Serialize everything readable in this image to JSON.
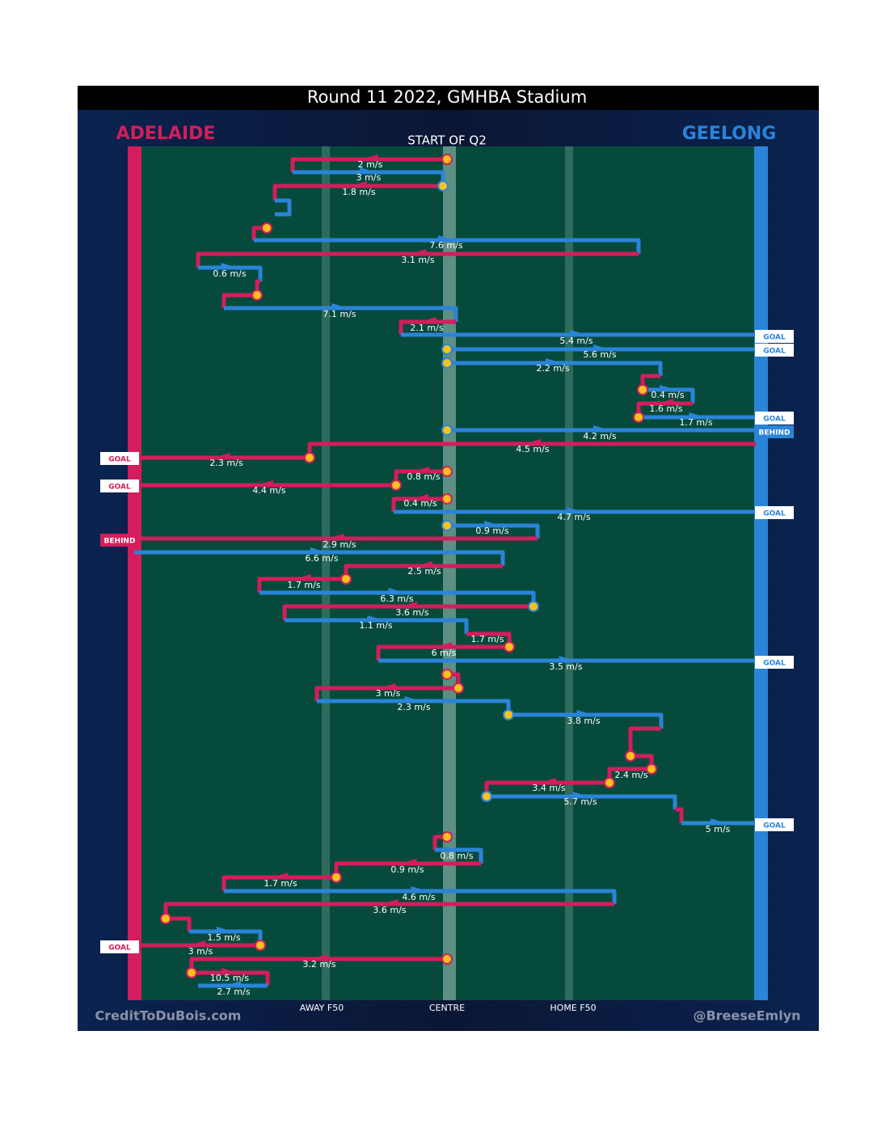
{
  "header": {
    "title": "Round 11 2022, GMHBA Stadium",
    "home_team": "ADELAIDE",
    "away_team": "GEELONG",
    "period": "START OF Q2"
  },
  "axis": {
    "labels": [
      "AWAY F50",
      "CENTRE",
      "HOME F50"
    ]
  },
  "speeds": [
    "2 m/s",
    "3 m/s",
    "1.8 m/s",
    "7.6 m/s",
    "3.1 m/s",
    "0.6 m/s",
    "7.1 m/s",
    "2.1 m/s",
    "5.4 m/s",
    "5.6 m/s",
    "2.2 m/s",
    "0.4 m/s",
    "1.6 m/s",
    "1.7 m/s",
    "4.2 m/s",
    "4.5 m/s",
    "2.3 m/s",
    "0.8 m/s",
    "4.4 m/s",
    "0.4 m/s",
    "4.7 m/s",
    "0.9 m/s",
    "2.9 m/s",
    "6.6 m/s",
    "2.5 m/s",
    "1.7 m/s",
    "6.3 m/s",
    "3.6 m/s",
    "1.1 m/s",
    "1.7 m/s",
    "6 m/s",
    "3.5 m/s",
    "3 m/s",
    "2.3 m/s",
    "3.8 m/s",
    "2.4 m/s",
    "3.4 m/s",
    "5.7 m/s",
    "5 m/s",
    "0.8 m/s",
    "0.9 m/s",
    "1.7 m/s",
    "4.6 m/s",
    "3.6 m/s",
    "1.5 m/s",
    "3 m/s",
    "3.2 m/s",
    "10.5 m/s",
    "2.7 m/s"
  ],
  "adelaide_outcomes": [
    "GOAL",
    "GOAL",
    "BEHIND",
    "GOAL"
  ],
  "geelong_outcomes": [
    "GOAL",
    "GOAL",
    "GOAL",
    "BEHIND",
    "GOAL",
    "GOAL",
    "GOAL"
  ],
  "footer": {
    "left": "CreditToDuBois.com",
    "right": "@BreeseEmlyn"
  }
}
